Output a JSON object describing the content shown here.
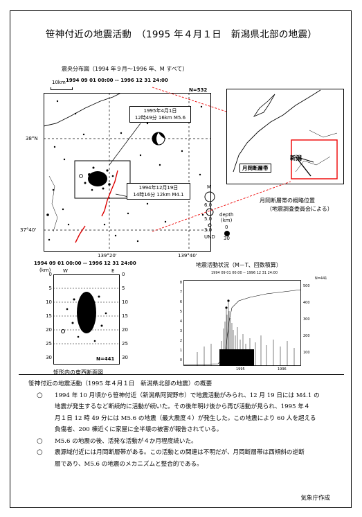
{
  "title": "笹神付近の地震活動　（1995 年４月１日　新潟県北部の地震）",
  "epicenter_map": {
    "caption": "震央分布図（1994 年９月～1996 年、M すべて）",
    "period": "1994 09 01 00:00  --  1996 12 31 24:00",
    "count": "N=532",
    "scale": "10km",
    "lat_labels": [
      "38°N",
      "37°40'"
    ],
    "lon_labels": [
      "139°20'",
      "139°40'"
    ],
    "event1_label": "1995年4月1日\n12時49分 16km M5.6",
    "event1_line1": "1995年4月1日",
    "event1_line2": "12時49分 16km  M5.6",
    "event2_line1": "1994年12月19日",
    "event2_line2": "14時16分 12km  M4.1",
    "legend_m_title": "M",
    "legend_m": [
      "6.0",
      "5.0",
      "3.0",
      "UND"
    ],
    "legend_depth_title": "depth",
    "legend_depth_unit": "(km)",
    "legend_depth": [
      "0",
      "30"
    ]
  },
  "inset_map": {
    "city": "新潟",
    "fault_label": "月岡断層帯",
    "caption_line1": "月岡断層帯の概略位置",
    "caption_line2": "（地震調査委員会による）"
  },
  "cross_section": {
    "period": "1994 09 01 00:00  --  1996 12 31 24:00",
    "unit": "(km)",
    "west": "W",
    "east": "E",
    "depth_ticks": [
      "0",
      "5",
      "10",
      "15",
      "20",
      "25",
      "30"
    ],
    "count": "N=441",
    "caption": "矩形内の東西断面図"
  },
  "mt_chart": {
    "caption": "地震活動状況（M－T、回数積算）",
    "period": "1994 09 01 00:00  --  1996 12 31 24:00",
    "count": "N=441",
    "left_ticks": [
      "0",
      "1",
      "2",
      "3",
      "4",
      "5",
      "6",
      "7",
      "8"
    ],
    "right_ticks": [
      "100",
      "200",
      "300",
      "400",
      "500"
    ],
    "x_labels": [
      "1995",
      "1996"
    ]
  },
  "summary": {
    "heading": "笹神付近の地震活動（1995 年４月１日　新潟県北部の地震）の概要",
    "bullet_mark": "○",
    "p1_lines": [
      "1994 年 10 月頃から笹神付近（新潟県阿賀野市）で地震活動がみられ、12 月 19 日には M4.1 の",
      "地震が発生するなど断続的に活動が続いた。その後年明け後から再び活動が見られ、1995 年４",
      "月１日 12 時 49 分には M5.6 の地震（最大震度４）が発生した。この地震により 60 人を超える",
      "負傷者、200 棟近くに家屋に全半壊の被害が報告されている。"
    ],
    "p2_lines": [
      "M5.6 の地震の後、活発な活動が４か月程度続いた。"
    ],
    "p3_lines": [
      "震源域付近には月岡断層帯がある。この活動との関連は不明だが、月岡断層帯は西傾斜の逆断",
      "層であり、M5.6 の地震のメカニズムと整合的である。"
    ]
  },
  "credit": "気象庁作成"
}
